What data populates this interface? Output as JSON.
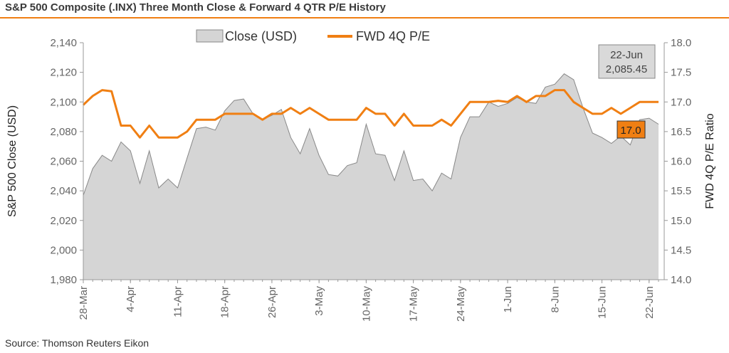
{
  "header": {
    "title": "S&P 500 Composite (.INX) Three Month Close & Forward 4 QTR P/E History"
  },
  "footer": {
    "source": "Source: Thomson Reuters Eikon"
  },
  "colors": {
    "accent": "#f07f13",
    "area_fill": "#d5d5d5",
    "area_stroke": "#888888",
    "axis": "#999999"
  },
  "chart_data": {
    "type": "area",
    "title": "S&P 500 Composite (.INX) Three Month Close & Forward 4 QTR P/E History",
    "x_tick_labels": [
      "28-Mar",
      "4-Apr",
      "11-Apr",
      "18-Apr",
      "26-Apr",
      "3-May",
      "10-May",
      "17-May",
      "24-May",
      "1-Jun",
      "8-Jun",
      "15-Jun",
      "22-Jun"
    ],
    "x_tick_positions": [
      0,
      5,
      10,
      15,
      20,
      25,
      30,
      35,
      40,
      45,
      50,
      55,
      60
    ],
    "ylabel_left": "S&P 500 Close (USD)",
    "ylabel_right": "FWD 4Q P/E Ratio",
    "ylim_left": [
      1980,
      2140
    ],
    "yticks_left": [
      "1,980",
      "2,000",
      "2,020",
      "2,040",
      "2,060",
      "2,080",
      "2,100",
      "2,120",
      "2,140"
    ],
    "ylim_right": [
      14.0,
      18.0
    ],
    "yticks_right": [
      "14.0",
      "14.5",
      "15.0",
      "15.5",
      "16.0",
      "16.5",
      "17.0",
      "17.5",
      "18.0"
    ],
    "grid": false,
    "legend_position": "top-center",
    "series": [
      {
        "name": "Close (USD)",
        "type": "area",
        "axis": "left",
        "color": "#d5d5d5",
        "values": [
          2037,
          2055,
          2064,
          2060,
          2073,
          2067,
          2045,
          2067,
          2042,
          2048,
          2042,
          2062,
          2082,
          2083,
          2081,
          2094,
          2101,
          2102,
          2092,
          2088,
          2091,
          2095,
          2076,
          2065,
          2082,
          2064,
          2051,
          2050,
          2057,
          2059,
          2085,
          2065,
          2064,
          2047,
          2067,
          2047,
          2048,
          2040,
          2052,
          2048,
          2076,
          2090,
          2090,
          2100,
          2097,
          2099,
          2103,
          2100,
          2099,
          2110,
          2112,
          2119,
          2115,
          2096,
          2079,
          2076,
          2072,
          2077,
          2071,
          2088,
          2089,
          2085
        ]
      },
      {
        "name": "FWD 4Q P/E",
        "type": "line",
        "axis": "right",
        "color": "#f07f13",
        "values": [
          16.95,
          17.1,
          17.2,
          17.18,
          16.6,
          16.6,
          16.4,
          16.6,
          16.4,
          16.4,
          16.4,
          16.5,
          16.7,
          16.7,
          16.7,
          16.8,
          16.8,
          16.8,
          16.8,
          16.7,
          16.8,
          16.8,
          16.9,
          16.8,
          16.9,
          16.8,
          16.7,
          16.7,
          16.7,
          16.7,
          16.9,
          16.8,
          16.8,
          16.6,
          16.8,
          16.6,
          16.6,
          16.6,
          16.7,
          16.6,
          16.8,
          17.0,
          17.0,
          17.0,
          17.02,
          17.0,
          17.1,
          17.0,
          17.1,
          17.1,
          17.2,
          17.2,
          17.0,
          16.9,
          16.8,
          16.8,
          16.9,
          16.8,
          16.9,
          17.0,
          17.0,
          17.0
        ]
      }
    ],
    "annotations": {
      "close_callout_date": "22-Jun",
      "close_callout_value": "2,085.45",
      "pe_callout_value": "17.0"
    }
  }
}
